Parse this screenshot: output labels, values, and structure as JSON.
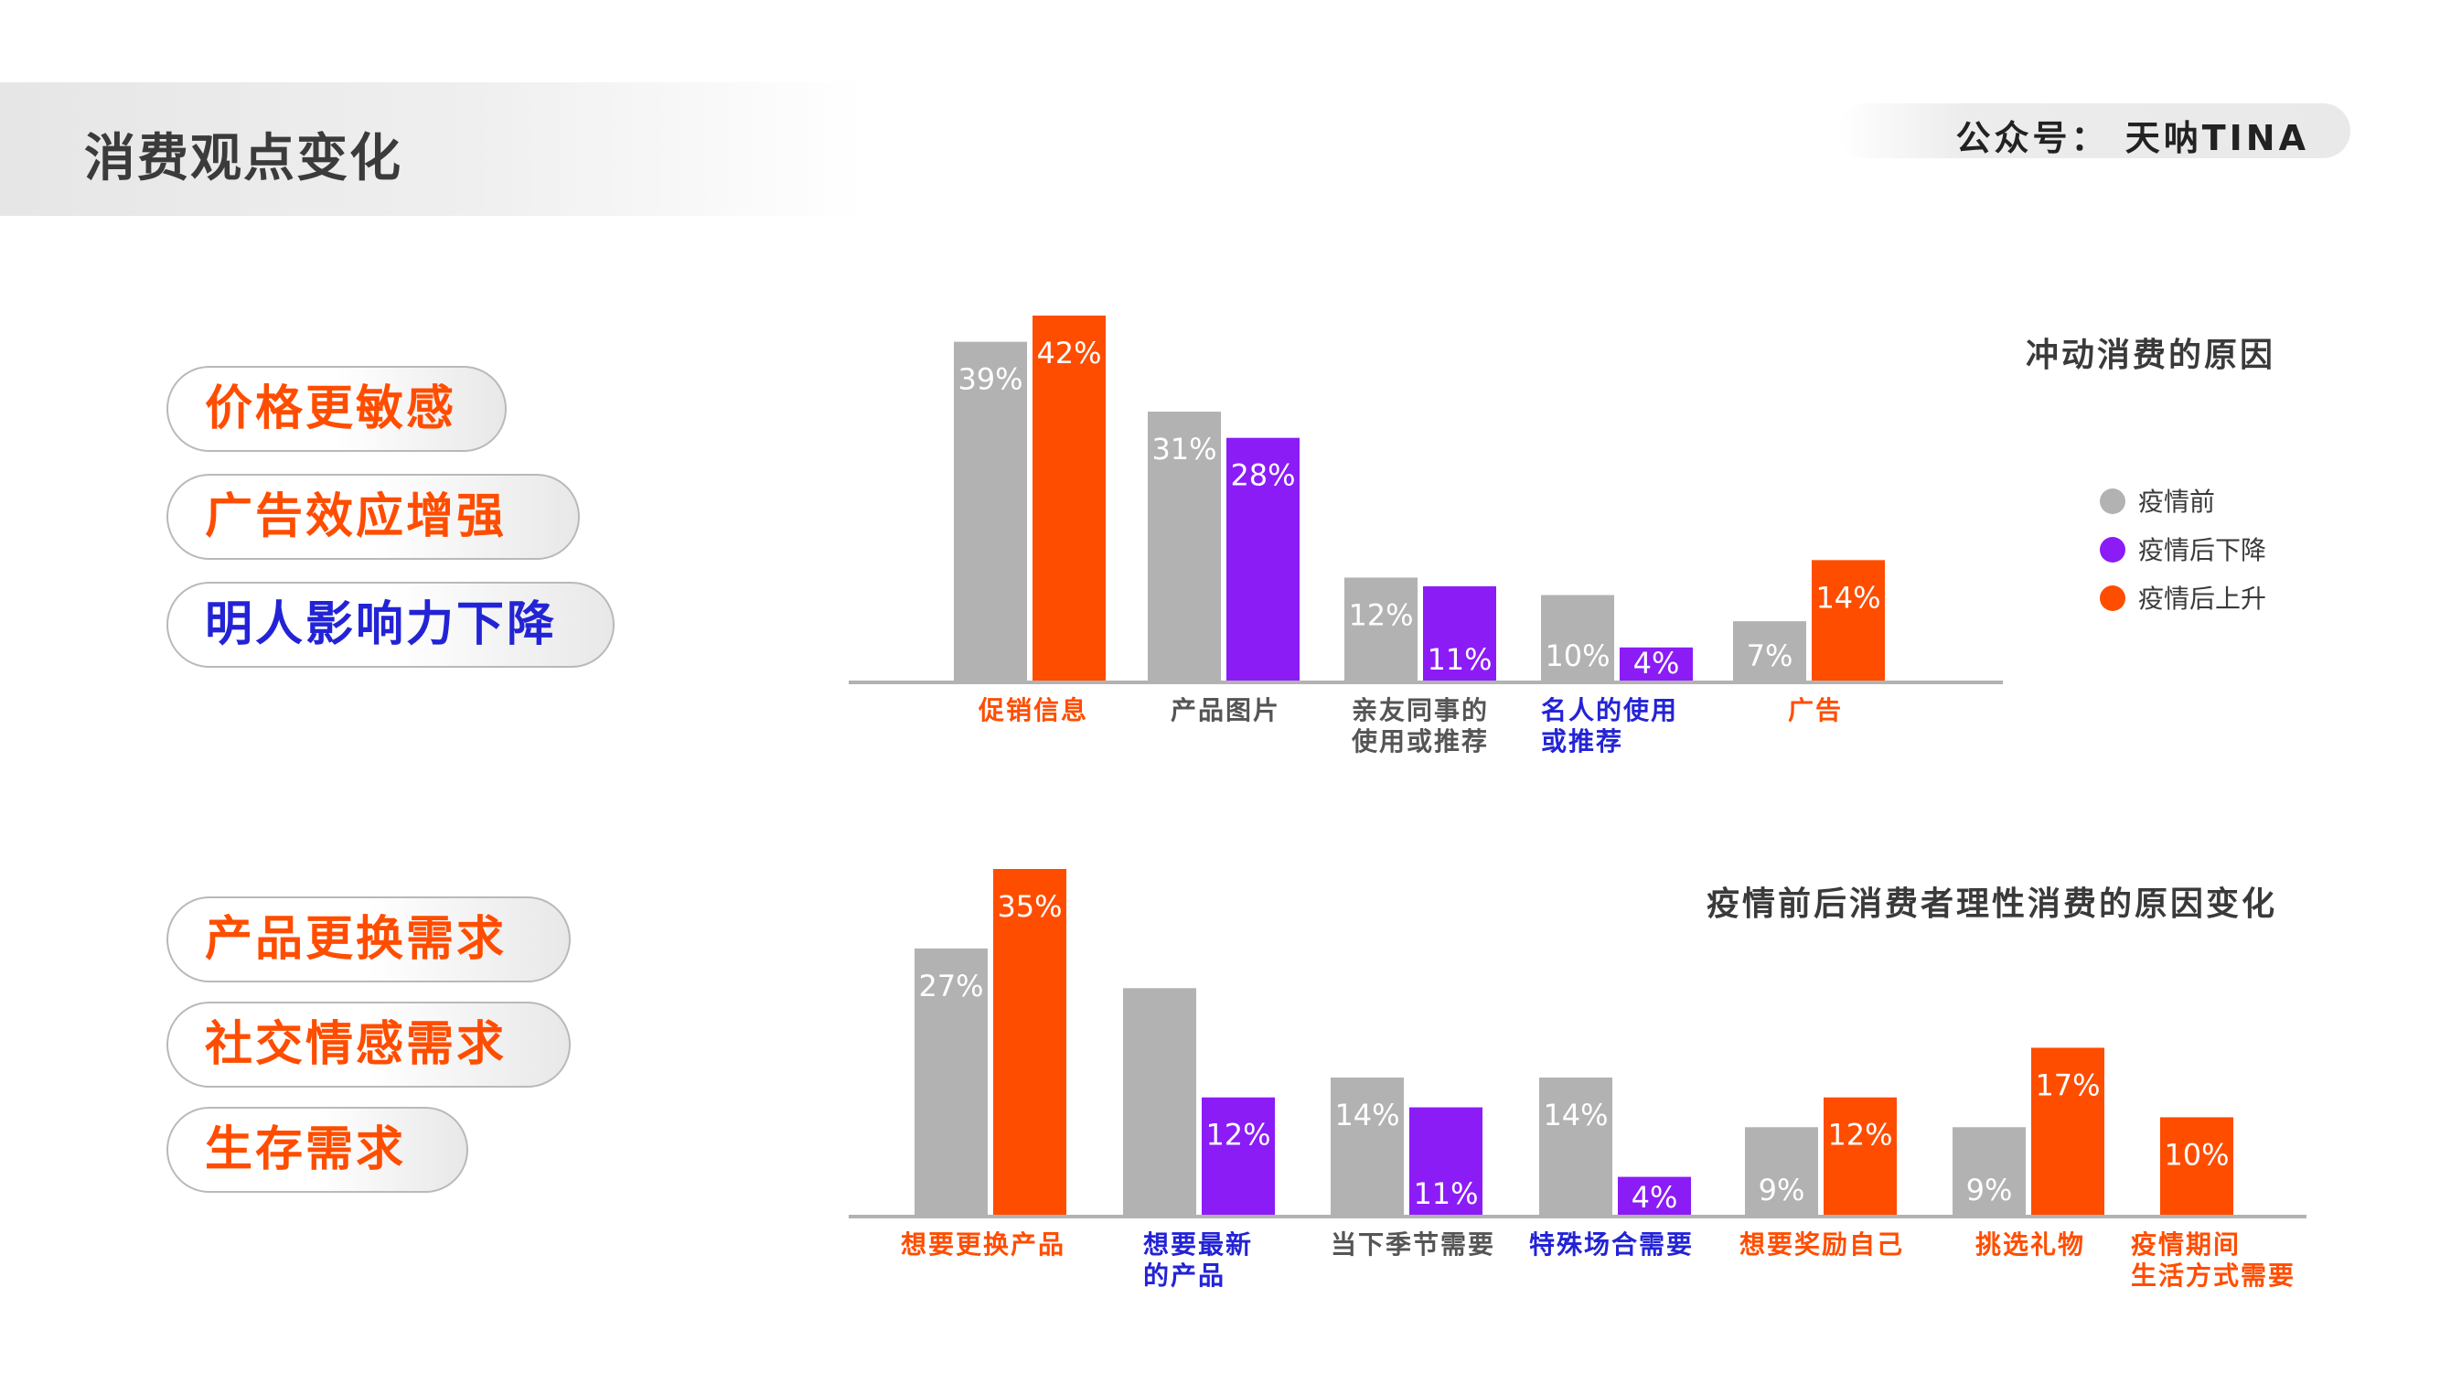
{
  "page_title": "消费观点变化",
  "brand": "公众号： 天呐TINA",
  "colors": {
    "before": "#b2b2b2",
    "down": "#8b1cf6",
    "up": "#ff4d00",
    "label_blue": "#2323d6",
    "label_gray": "#555555",
    "axis": "#b2b2b2"
  },
  "tags_top": [
    {
      "label": "价格更敏感",
      "color": "#ff4d00"
    },
    {
      "label": "广告效应增强",
      "color": "#ff4d00"
    },
    {
      "label": "明人影响力下降",
      "color": "#2323d6"
    }
  ],
  "tags_bottom": [
    {
      "label": "产品更换需求",
      "color": "#ff4d00"
    },
    {
      "label": "社交情感需求",
      "color": "#ff4d00"
    },
    {
      "label": "生存需求",
      "color": "#ff4d00"
    }
  ],
  "chart_data": [
    {
      "type": "bar",
      "title": "冲动消费的原因",
      "legend": [
        "疫情前",
        "疫情后下降",
        "疫情后上升"
      ],
      "legend_position": "right",
      "ylim": [
        0,
        42
      ],
      "categories": [
        {
          "label": [
            "促销信息"
          ],
          "label_color": "up",
          "before": 39,
          "after": 42,
          "after_dir": "up"
        },
        {
          "label": [
            "产品图片"
          ],
          "label_color": "gray",
          "before": 31,
          "after": 28,
          "after_dir": "down"
        },
        {
          "label": [
            "亲友同事的",
            "使用或推荐"
          ],
          "label_color": "gray",
          "before": 12,
          "after": 11,
          "after_dir": "down"
        },
        {
          "label": [
            "名人的使用",
            "或推荐"
          ],
          "label_color": "blue",
          "before": 10,
          "after": 4,
          "after_dir": "down"
        },
        {
          "label": [
            "广告"
          ],
          "label_color": "up",
          "before": 7,
          "after": 14,
          "after_dir": "up"
        }
      ]
    },
    {
      "type": "bar",
      "title": "疫情前后消费者理性消费的原因变化",
      "ylim": [
        0,
        35
      ],
      "categories": [
        {
          "label": [
            "想要更换产品"
          ],
          "label_color": "up",
          "before": 27,
          "after": 35,
          "after_dir": "up"
        },
        {
          "label": [
            "想要最新",
            "的产品"
          ],
          "label_color": "blue",
          "before": 23,
          "after": 12,
          "after_dir": "down",
          "before_label": ""
        },
        {
          "label": [
            "当下季节需要"
          ],
          "label_color": "gray",
          "before": 14,
          "after": 11,
          "after_dir": "down"
        },
        {
          "label": [
            "特殊场合需要"
          ],
          "label_color": "blue",
          "before": 14,
          "after": 4,
          "after_dir": "down"
        },
        {
          "label": [
            "想要奖励自己"
          ],
          "label_color": "up",
          "before": 9,
          "after": 12,
          "after_dir": "up"
        },
        {
          "label": [
            "挑选礼物"
          ],
          "label_color": "up",
          "before": 9,
          "after": 17,
          "after_dir": "up"
        },
        {
          "label": [
            "疫情期间",
            "生活方式需要"
          ],
          "label_color": "up",
          "after": 10,
          "after_dir": "up"
        }
      ]
    }
  ]
}
